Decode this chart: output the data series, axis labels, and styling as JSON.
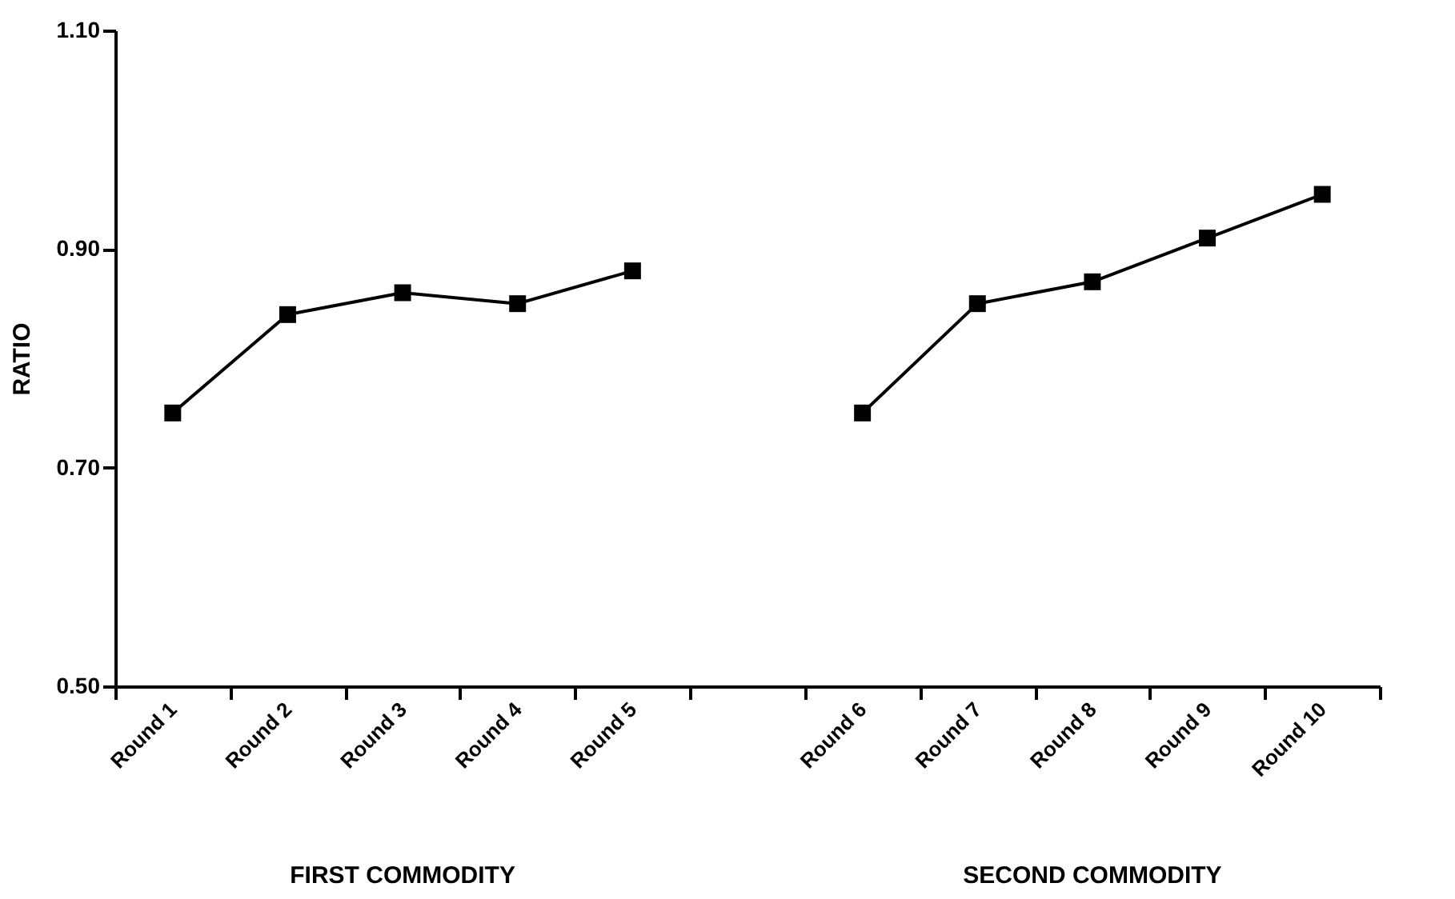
{
  "chart_data": {
    "type": "line",
    "ylabel": "RATIO",
    "categories": [
      "Round 1",
      "Round 2",
      "Round 3",
      "Round 4",
      "Round 5",
      null,
      "Round 6",
      "Round 7",
      "Round 8",
      "Round 9",
      "Round 10"
    ],
    "series": [
      {
        "color": "#000000",
        "values": [
          0.75,
          0.84,
          0.86,
          0.85,
          0.88,
          null,
          0.75,
          0.85,
          0.87,
          0.91,
          0.95
        ]
      }
    ],
    "ylim": [
      0.5,
      1.1
    ],
    "yticks": [
      {
        "value": 0.5,
        "label": "0.50"
      },
      {
        "value": 0.7,
        "label": "0.70"
      },
      {
        "value": 0.9,
        "label": "0.90"
      },
      {
        "value": 1.1,
        "label": "1.10"
      }
    ],
    "marker": "square",
    "line_style": "solid",
    "grid": false,
    "legend": false,
    "annotations": [
      "FIRST COMMODITY",
      "SECOND COMMODITY"
    ]
  }
}
